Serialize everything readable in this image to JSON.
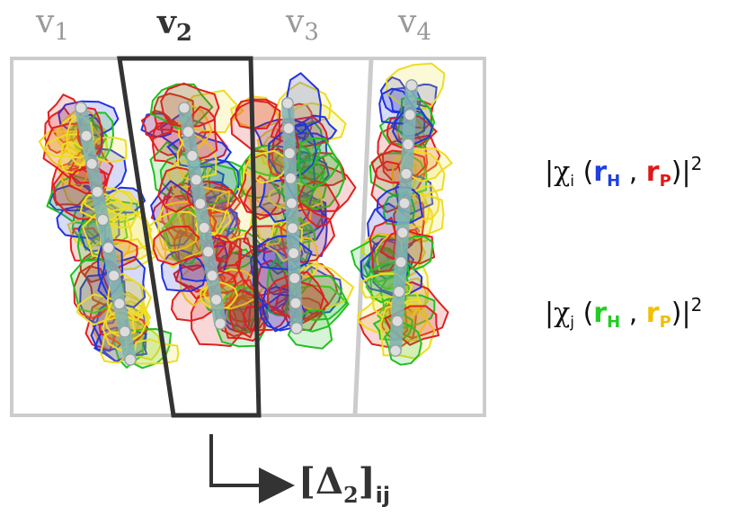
{
  "columns": [
    {
      "letter": "v",
      "index": "1",
      "active": false
    },
    {
      "letter": "v",
      "index": "2",
      "active": true
    },
    {
      "letter": "v",
      "index": "3",
      "active": false
    },
    {
      "letter": "v",
      "index": "4",
      "active": false
    }
  ],
  "legend": {
    "i": {
      "chi": "χ",
      "sub": "i",
      "r": "r",
      "h_sub": "H",
      "p_sub": "P",
      "sep": ",",
      "sup": "2",
      "h_color": "#1f3fe0",
      "p_color": "#e01818"
    },
    "j": {
      "chi": "χ",
      "sub": "j",
      "r": "r",
      "h_sub": "H",
      "p_sub": "P",
      "sep": ",",
      "sup": "2",
      "h_color": "#22cc22",
      "p_color": "#f0c000"
    }
  },
  "delta": {
    "symbol": "Δ",
    "index": "2",
    "sub": "ij"
  },
  "colors": {
    "blue": "#2233dd",
    "red": "#e02020",
    "green": "#22c022",
    "yellow": "#eedd22",
    "frame": "#cccccc",
    "highlight": "#333333",
    "molecule": "#7fb4b8"
  }
}
